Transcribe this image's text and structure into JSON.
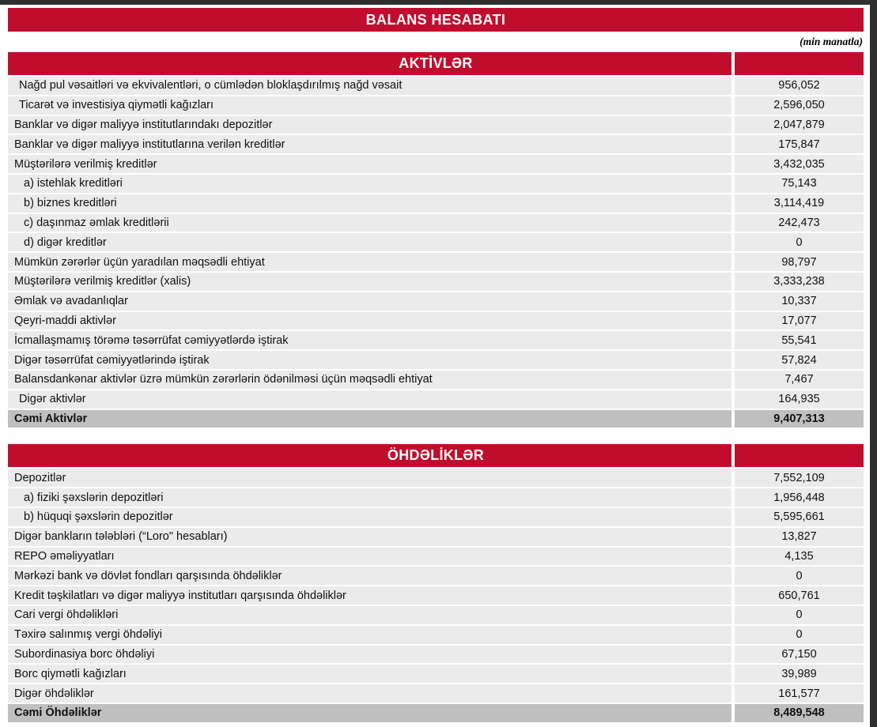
{
  "page": {
    "title": "BALANS HESABATI",
    "unit_note": "(min manatla)"
  },
  "colors": {
    "accent": "#C10D2D",
    "row_background": "#EBEBEB",
    "total_row_background": "#BFBFBF",
    "frame": "#2F2F2F"
  },
  "sections": [
    {
      "header": "AKTİVLƏR",
      "rows": [
        {
          "label": "Nağd pul vəsaitləri və ekvivalentləri, o cümlədən bloklaşdırılmış nağd vəsait",
          "value": "956,052",
          "indent": 1,
          "total": false
        },
        {
          "label": "Ticarət və investisiya qiymətli kağızları",
          "value": "2,596,050",
          "indent": 1,
          "total": false
        },
        {
          "label": "Banklar və digər maliyyə institutlarındakı depozitlər",
          "value": "2,047,879",
          "indent": 0,
          "total": false
        },
        {
          "label": "Banklar və digər maliyyə institutlarına verilən kreditlər",
          "value": "175,847",
          "indent": 0,
          "total": false
        },
        {
          "label": "Müştərilərə verilmiş kreditlər",
          "value": "3,432,035",
          "indent": 0,
          "total": false
        },
        {
          "label": "a) istehlak kreditləri",
          "value": "75,143",
          "indent": 2,
          "total": false
        },
        {
          "label": "b) biznes kreditləri",
          "value": "3,114,419",
          "indent": 2,
          "total": false
        },
        {
          "label": "c) daşınmaz əmlak kreditlərii",
          "value": "242,473",
          "indent": 2,
          "total": false
        },
        {
          "label": "d) digər kreditlər",
          "value": "0",
          "indent": 2,
          "total": false
        },
        {
          "label": "Mümkün zərərlər üçün yaradılan məqsədli ehtiyat",
          "value": "98,797",
          "indent": 0,
          "total": false
        },
        {
          "label": "Müştərilərə verilmiş kreditlər (xalis)",
          "value": "3,333,238",
          "indent": 0,
          "total": false
        },
        {
          "label": "Əmlak və avadanlıqlar",
          "value": "10,337",
          "indent": 0,
          "total": false
        },
        {
          "label": "Qeyri-maddi aktivlər",
          "value": "17,077",
          "indent": 0,
          "total": false
        },
        {
          "label": "İcmallaşmamış törəmə təsərrüfat cəmiyyətlərdə iştirak",
          "value": "55,541",
          "indent": 0,
          "total": false
        },
        {
          "label": "Digər təsərrüfat cəmiyyətlərində iştirak",
          "value": "57,824",
          "indent": 0,
          "total": false
        },
        {
          "label": "Balansdankənar aktivlər üzrə mümkün zərərlərin ödənilməsi üçün məqsədli ehtiyat",
          "value": "7,467",
          "indent": 0,
          "total": false
        },
        {
          "label": "Digər aktivlər",
          "value": "164,935",
          "indent": 1,
          "total": false
        },
        {
          "label": "Cəmi Aktivlər",
          "value": "9,407,313",
          "indent": 0,
          "total": true
        }
      ]
    },
    {
      "header": "ÖHDƏLİKLƏR",
      "rows": [
        {
          "label": "Depozitlər",
          "value": "7,552,109",
          "indent": 0,
          "total": false
        },
        {
          "label": "a) fiziki şəxslərin depozitləri",
          "value": "1,956,448",
          "indent": 2,
          "total": false
        },
        {
          "label": "b) hüquqi şəxslərin depozitlər",
          "value": "5,595,661",
          "indent": 2,
          "total": false
        },
        {
          "label": "Digər bankların tələbləri (“Loro\" hesabları)",
          "value": "13,827",
          "indent": 0,
          "total": false
        },
        {
          "label": "REPO əməliyyatları",
          "value": "4,135",
          "indent": 0,
          "total": false
        },
        {
          "label": "Mərkəzi bank və dövlət fondları qarşısında öhdəliklər",
          "value": "0",
          "indent": 0,
          "total": false
        },
        {
          "label": "Kredit təşkilatları və digər maliyyə institutları qarşısında öhdəliklər",
          "value": "650,761",
          "indent": 0,
          "total": false
        },
        {
          "label": "Cari vergi öhdəlikləri",
          "value": "0",
          "indent": 0,
          "total": false
        },
        {
          "label": "Təxirə salınmış vergi öhdəliyi",
          "value": "0",
          "indent": 0,
          "total": false
        },
        {
          "label": "Subordinasiya borc öhdəliyi",
          "value": "67,150",
          "indent": 0,
          "total": false
        },
        {
          "label": "Borc qiymətli kağızları",
          "value": "39,989",
          "indent": 0,
          "total": false
        },
        {
          "label": "Digər öhdəliklər",
          "value": "161,577",
          "indent": 0,
          "total": false
        },
        {
          "label": "Cəmi Öhdəliklər",
          "value": "8,489,548",
          "indent": 0,
          "total": true
        }
      ]
    }
  ]
}
